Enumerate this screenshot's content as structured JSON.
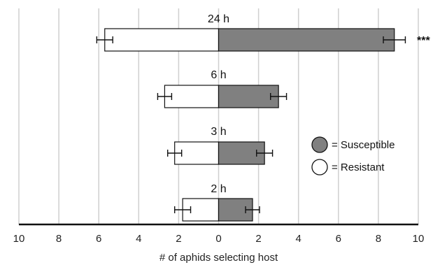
{
  "chart_data": {
    "type": "bar",
    "orientation": "horizontal-diverging",
    "xlabel": "# of aphids selecting host",
    "xlim": [
      -10,
      10
    ],
    "xticks": [
      -10,
      -8,
      -6,
      -4,
      -2,
      0,
      2,
      4,
      6,
      8,
      10
    ],
    "xtick_labels": [
      "10",
      "8",
      "6",
      "4",
      "2",
      "0",
      "2",
      "4",
      "6",
      "8",
      "10"
    ],
    "grid": "vertical",
    "legend_position": "right",
    "categories": [
      "24 h",
      "6 h",
      "3 h",
      "2 h"
    ],
    "series": [
      {
        "name": "Resistant",
        "marker": "○",
        "color": "#ffffff",
        "values": [
          5.7,
          2.7,
          2.2,
          1.8
        ],
        "errors": [
          0.4,
          0.35,
          0.35,
          0.4
        ]
      },
      {
        "name": "Susceptible",
        "marker": "●",
        "color": "#808080",
        "values": [
          8.8,
          3.0,
          2.3,
          1.7
        ],
        "errors": [
          0.55,
          0.4,
          0.4,
          0.35
        ]
      }
    ],
    "annotations": [
      {
        "category": "24 h",
        "text": "***"
      }
    ],
    "legend": [
      {
        "label": "= Susceptible",
        "color": "#808080"
      },
      {
        "label": "= Resistant",
        "color": "#ffffff"
      }
    ]
  }
}
